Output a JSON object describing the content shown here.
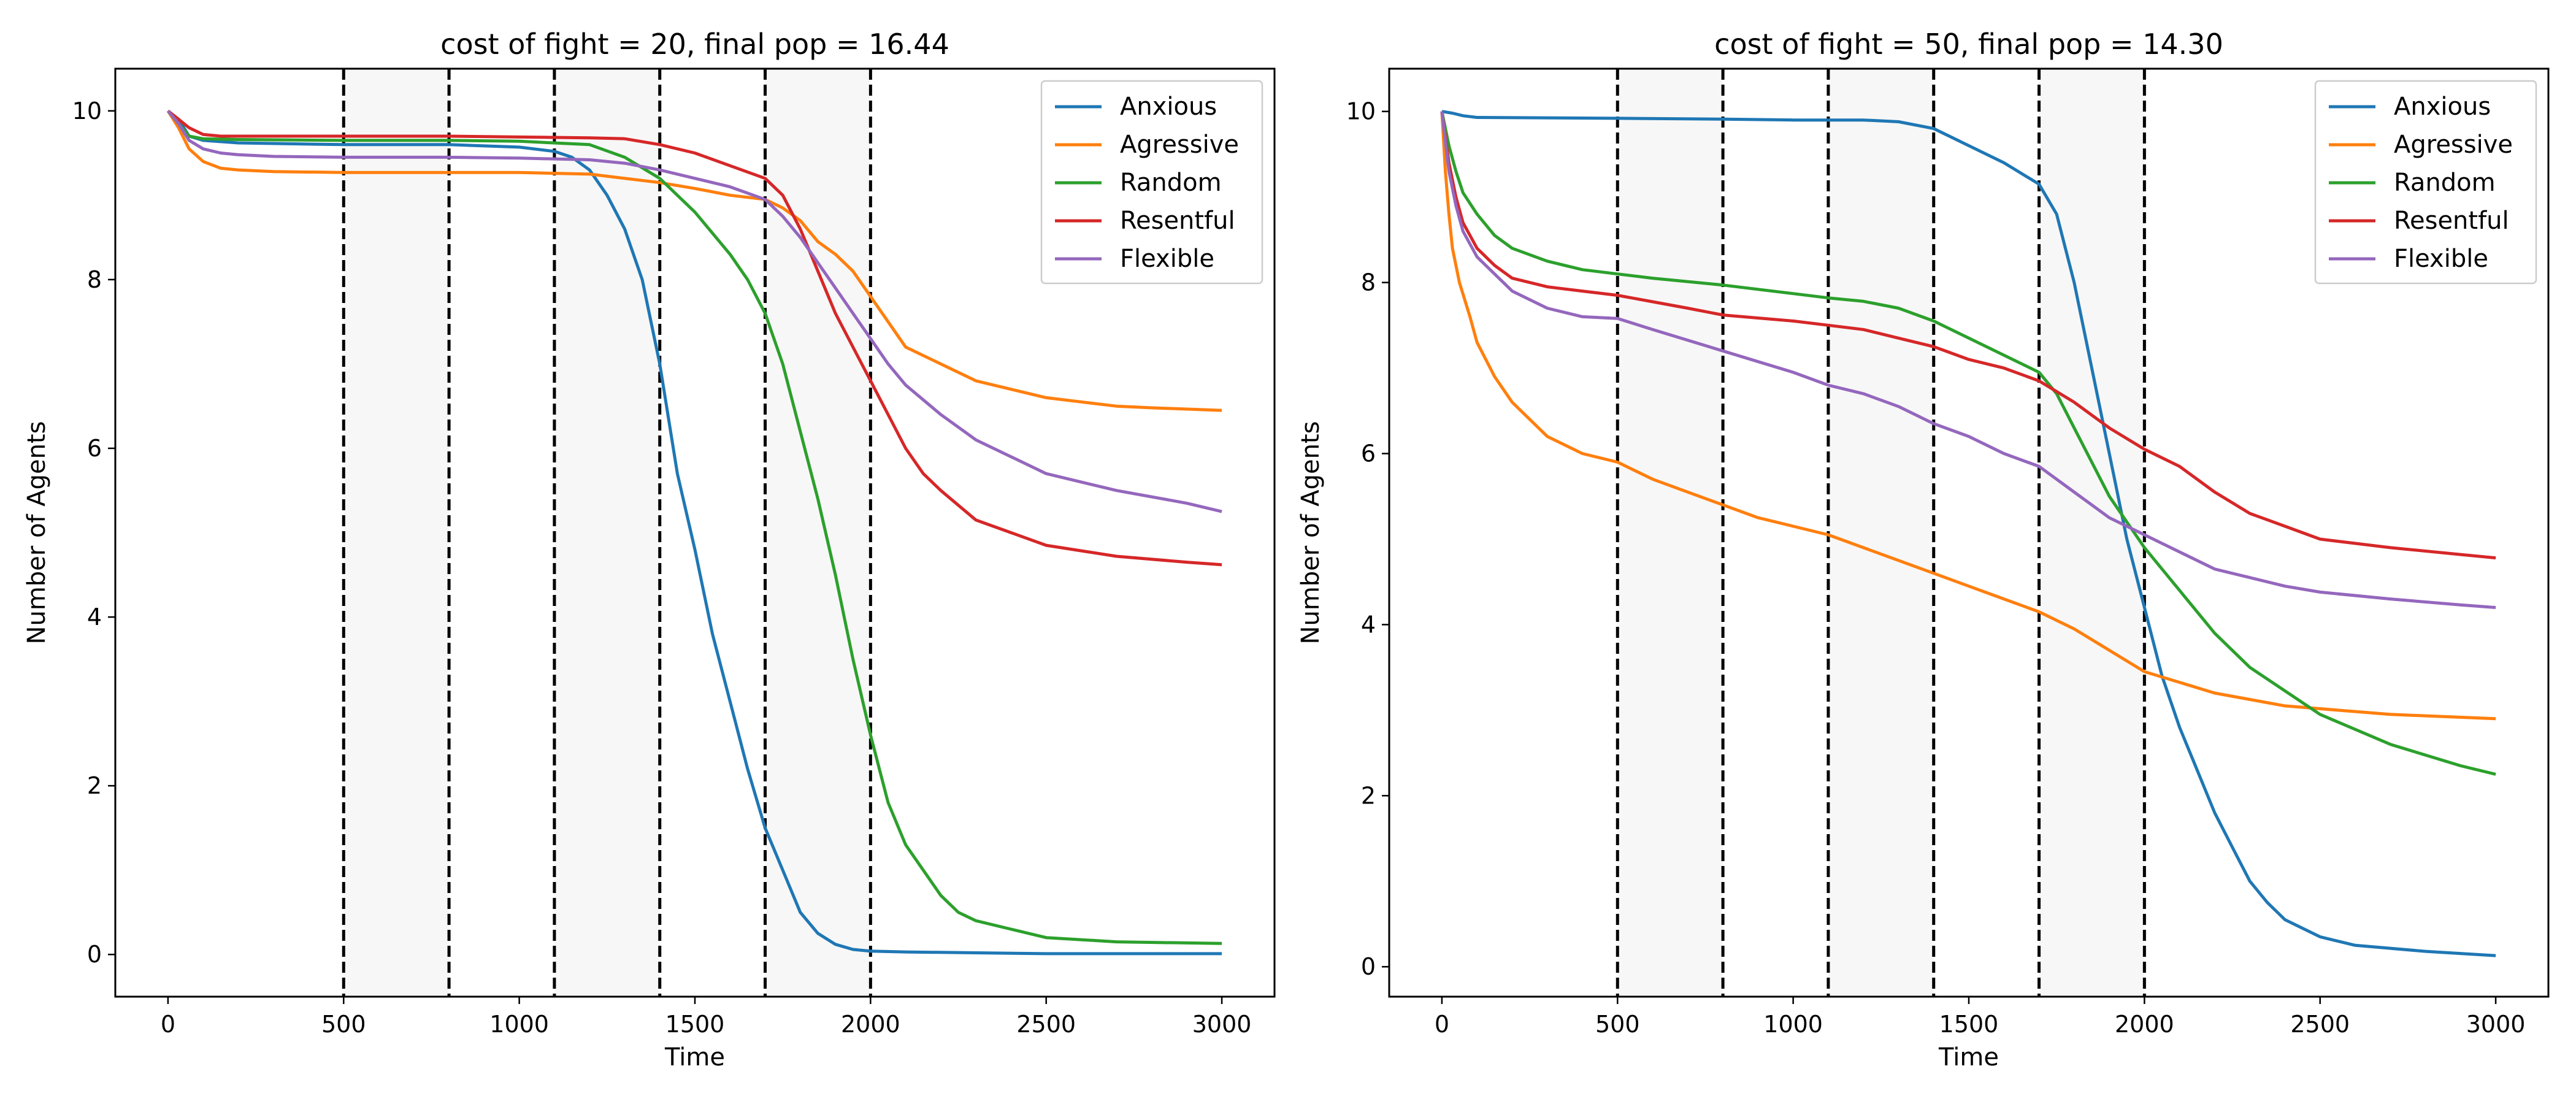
{
  "colors": {
    "Anxious": "#1f77b4",
    "Agressive": "#ff7f0e",
    "Random": "#2ca02c",
    "Resentful": "#d62728",
    "Flexible": "#9467bd",
    "band_fill": "#f7f7f7",
    "vline": "#000000"
  },
  "chart_data": [
    {
      "type": "line",
      "title": "cost of fight = 20, final pop = 16.44",
      "xlabel": "Time",
      "ylabel": "Number of Agents",
      "xlim": [
        -150,
        3150
      ],
      "ylim": [
        -0.5,
        10.5
      ],
      "xticks": [
        0,
        500,
        1000,
        1500,
        2000,
        2500,
        3000
      ],
      "yticks": [
        0,
        2,
        4,
        6,
        8,
        10
      ],
      "grid": false,
      "legend_position": "top-right",
      "vlines": [
        500,
        800,
        1100,
        1400,
        1700,
        2000
      ],
      "shaded_bands": [
        [
          500,
          800
        ],
        [
          1100,
          1400
        ],
        [
          1700,
          2000
        ]
      ],
      "series": [
        {
          "name": "Anxious",
          "x": [
            0,
            30,
            60,
            100,
            200,
            500,
            800,
            1000,
            1100,
            1150,
            1200,
            1250,
            1300,
            1350,
            1400,
            1450,
            1500,
            1550,
            1600,
            1650,
            1700,
            1750,
            1800,
            1850,
            1900,
            1950,
            2000,
            2100,
            2300,
            2500,
            3000
          ],
          "y": [
            10,
            9.9,
            9.7,
            9.65,
            9.62,
            9.6,
            9.6,
            9.57,
            9.52,
            9.45,
            9.3,
            9.0,
            8.6,
            8.0,
            7.0,
            5.7,
            4.8,
            3.8,
            3.0,
            2.2,
            1.5,
            1.0,
            0.5,
            0.25,
            0.12,
            0.06,
            0.04,
            0.03,
            0.02,
            0.01,
            0.01
          ]
        },
        {
          "name": "Agressive",
          "x": [
            0,
            30,
            60,
            100,
            150,
            200,
            300,
            500,
            800,
            1000,
            1200,
            1400,
            1500,
            1600,
            1700,
            1750,
            1800,
            1850,
            1900,
            1950,
            2000,
            2050,
            2100,
            2200,
            2300,
            2400,
            2500,
            2600,
            2700,
            2800,
            3000
          ],
          "y": [
            10,
            9.8,
            9.55,
            9.4,
            9.32,
            9.3,
            9.28,
            9.27,
            9.27,
            9.27,
            9.25,
            9.15,
            9.08,
            9.0,
            8.95,
            8.85,
            8.7,
            8.45,
            8.3,
            8.1,
            7.8,
            7.5,
            7.2,
            7.0,
            6.8,
            6.7,
            6.6,
            6.55,
            6.5,
            6.48,
            6.45
          ]
        },
        {
          "name": "Random",
          "x": [
            0,
            30,
            60,
            100,
            200,
            500,
            800,
            1000,
            1200,
            1300,
            1400,
            1500,
            1600,
            1650,
            1700,
            1750,
            1800,
            1850,
            1900,
            1950,
            2000,
            2050,
            2100,
            2150,
            2200,
            2250,
            2300,
            2400,
            2500,
            2700,
            3000
          ],
          "y": [
            10,
            9.85,
            9.7,
            9.67,
            9.66,
            9.65,
            9.65,
            9.64,
            9.6,
            9.45,
            9.2,
            8.8,
            8.3,
            8.0,
            7.6,
            7.0,
            6.2,
            5.4,
            4.5,
            3.5,
            2.6,
            1.8,
            1.3,
            1.0,
            0.7,
            0.5,
            0.4,
            0.3,
            0.2,
            0.15,
            0.13
          ]
        },
        {
          "name": "Resentful",
          "x": [
            0,
            30,
            60,
            100,
            150,
            300,
            500,
            800,
            1000,
            1200,
            1300,
            1400,
            1500,
            1600,
            1700,
            1750,
            1800,
            1850,
            1900,
            1950,
            2000,
            2050,
            2100,
            2150,
            2200,
            2300,
            2400,
            2500,
            2700,
            2900,
            3000
          ],
          "y": [
            10,
            9.9,
            9.8,
            9.72,
            9.7,
            9.7,
            9.7,
            9.7,
            9.69,
            9.68,
            9.67,
            9.6,
            9.5,
            9.35,
            9.2,
            9.0,
            8.6,
            8.1,
            7.6,
            7.2,
            6.8,
            6.4,
            6.0,
            5.7,
            5.5,
            5.15,
            5.0,
            4.85,
            4.72,
            4.65,
            4.62
          ]
        },
        {
          "name": "Flexible",
          "x": [
            0,
            30,
            60,
            100,
            150,
            200,
            300,
            500,
            800,
            1000,
            1200,
            1300,
            1400,
            1500,
            1600,
            1700,
            1750,
            1800,
            1850,
            1900,
            1950,
            2000,
            2050,
            2100,
            2200,
            2300,
            2400,
            2500,
            2700,
            2900,
            3000
          ],
          "y": [
            10,
            9.85,
            9.65,
            9.55,
            9.5,
            9.48,
            9.46,
            9.45,
            9.45,
            9.44,
            9.42,
            9.38,
            9.3,
            9.2,
            9.1,
            8.95,
            8.75,
            8.5,
            8.2,
            7.9,
            7.6,
            7.3,
            7.0,
            6.75,
            6.4,
            6.1,
            5.9,
            5.7,
            5.5,
            5.35,
            5.25
          ]
        }
      ]
    },
    {
      "type": "line",
      "title": "cost of fight = 50, final pop = 14.30",
      "xlabel": "Time",
      "ylabel": "Number of Agents",
      "xlim": [
        -150,
        3150
      ],
      "ylim": [
        -0.35,
        10.5
      ],
      "xticks": [
        0,
        500,
        1000,
        1500,
        2000,
        2500,
        3000
      ],
      "yticks": [
        0,
        2,
        4,
        6,
        8,
        10
      ],
      "grid": false,
      "legend_position": "top-right",
      "vlines": [
        500,
        800,
        1100,
        1400,
        1700,
        2000
      ],
      "shaded_bands": [
        [
          500,
          800
        ],
        [
          1100,
          1400
        ],
        [
          1700,
          2000
        ]
      ],
      "series": [
        {
          "name": "Anxious",
          "x": [
            0,
            30,
            60,
            100,
            500,
            800,
            1000,
            1200,
            1300,
            1400,
            1500,
            1600,
            1700,
            1750,
            1800,
            1850,
            1900,
            1950,
            2000,
            2050,
            2100,
            2150,
            2200,
            2250,
            2300,
            2350,
            2400,
            2500,
            2600,
            2800,
            3000
          ],
          "y": [
            10,
            9.98,
            9.95,
            9.93,
            9.92,
            9.91,
            9.9,
            9.9,
            9.88,
            9.8,
            9.6,
            9.4,
            9.15,
            8.8,
            8.0,
            7.0,
            6.0,
            5.0,
            4.2,
            3.4,
            2.8,
            2.3,
            1.8,
            1.4,
            1.0,
            0.75,
            0.55,
            0.35,
            0.25,
            0.18,
            0.13
          ]
        },
        {
          "name": "Agressive",
          "x": [
            0,
            10,
            20,
            30,
            50,
            80,
            100,
            150,
            200,
            300,
            400,
            500,
            600,
            700,
            800,
            900,
            1000,
            1100,
            1200,
            1300,
            1400,
            1500,
            1600,
            1700,
            1800,
            1900,
            2000,
            2200,
            2400,
            2700,
            3000
          ],
          "y": [
            10,
            9.3,
            8.8,
            8.4,
            8.0,
            7.6,
            7.3,
            6.9,
            6.6,
            6.2,
            6.0,
            5.9,
            5.7,
            5.55,
            5.4,
            5.25,
            5.15,
            5.05,
            4.9,
            4.75,
            4.6,
            4.45,
            4.3,
            4.15,
            3.95,
            3.7,
            3.45,
            3.2,
            3.05,
            2.95,
            2.9
          ]
        },
        {
          "name": "Random",
          "x": [
            0,
            20,
            40,
            60,
            100,
            150,
            200,
            300,
            400,
            500,
            600,
            800,
            1000,
            1100,
            1200,
            1300,
            1400,
            1500,
            1600,
            1700,
            1750,
            1800,
            1850,
            1900,
            1950,
            2000,
            2100,
            2200,
            2300,
            2500,
            2700,
            2900,
            3000
          ],
          "y": [
            10,
            9.6,
            9.3,
            9.05,
            8.8,
            8.55,
            8.4,
            8.25,
            8.15,
            8.1,
            8.05,
            7.97,
            7.87,
            7.82,
            7.78,
            7.7,
            7.55,
            7.35,
            7.15,
            6.95,
            6.7,
            6.3,
            5.9,
            5.5,
            5.2,
            4.9,
            4.4,
            3.9,
            3.5,
            2.95,
            2.6,
            2.35,
            2.25
          ]
        },
        {
          "name": "Resentful",
          "x": [
            0,
            20,
            40,
            60,
            100,
            150,
            200,
            300,
            400,
            500,
            700,
            800,
            1000,
            1100,
            1200,
            1300,
            1400,
            1500,
            1600,
            1700,
            1800,
            1900,
            2000,
            2100,
            2200,
            2300,
            2400,
            2500,
            2700,
            2900,
            3000
          ],
          "y": [
            10,
            9.4,
            9.0,
            8.7,
            8.4,
            8.2,
            8.05,
            7.95,
            7.9,
            7.85,
            7.7,
            7.62,
            7.55,
            7.5,
            7.45,
            7.35,
            7.25,
            7.1,
            7.0,
            6.85,
            6.6,
            6.3,
            6.05,
            5.85,
            5.55,
            5.3,
            5.15,
            5.0,
            4.9,
            4.82,
            4.78
          ]
        },
        {
          "name": "Flexible",
          "x": [
            0,
            20,
            40,
            60,
            100,
            150,
            200,
            300,
            400,
            500,
            600,
            800,
            1000,
            1100,
            1200,
            1300,
            1400,
            1500,
            1600,
            1700,
            1800,
            1900,
            2000,
            2100,
            2200,
            2300,
            2400,
            2500,
            2700,
            2900,
            3000
          ],
          "y": [
            10,
            9.3,
            8.9,
            8.6,
            8.3,
            8.1,
            7.9,
            7.7,
            7.6,
            7.58,
            7.45,
            7.2,
            6.95,
            6.8,
            6.7,
            6.55,
            6.35,
            6.2,
            6.0,
            5.85,
            5.55,
            5.25,
            5.05,
            4.85,
            4.65,
            4.55,
            4.45,
            4.38,
            4.3,
            4.23,
            4.2
          ]
        }
      ]
    }
  ]
}
